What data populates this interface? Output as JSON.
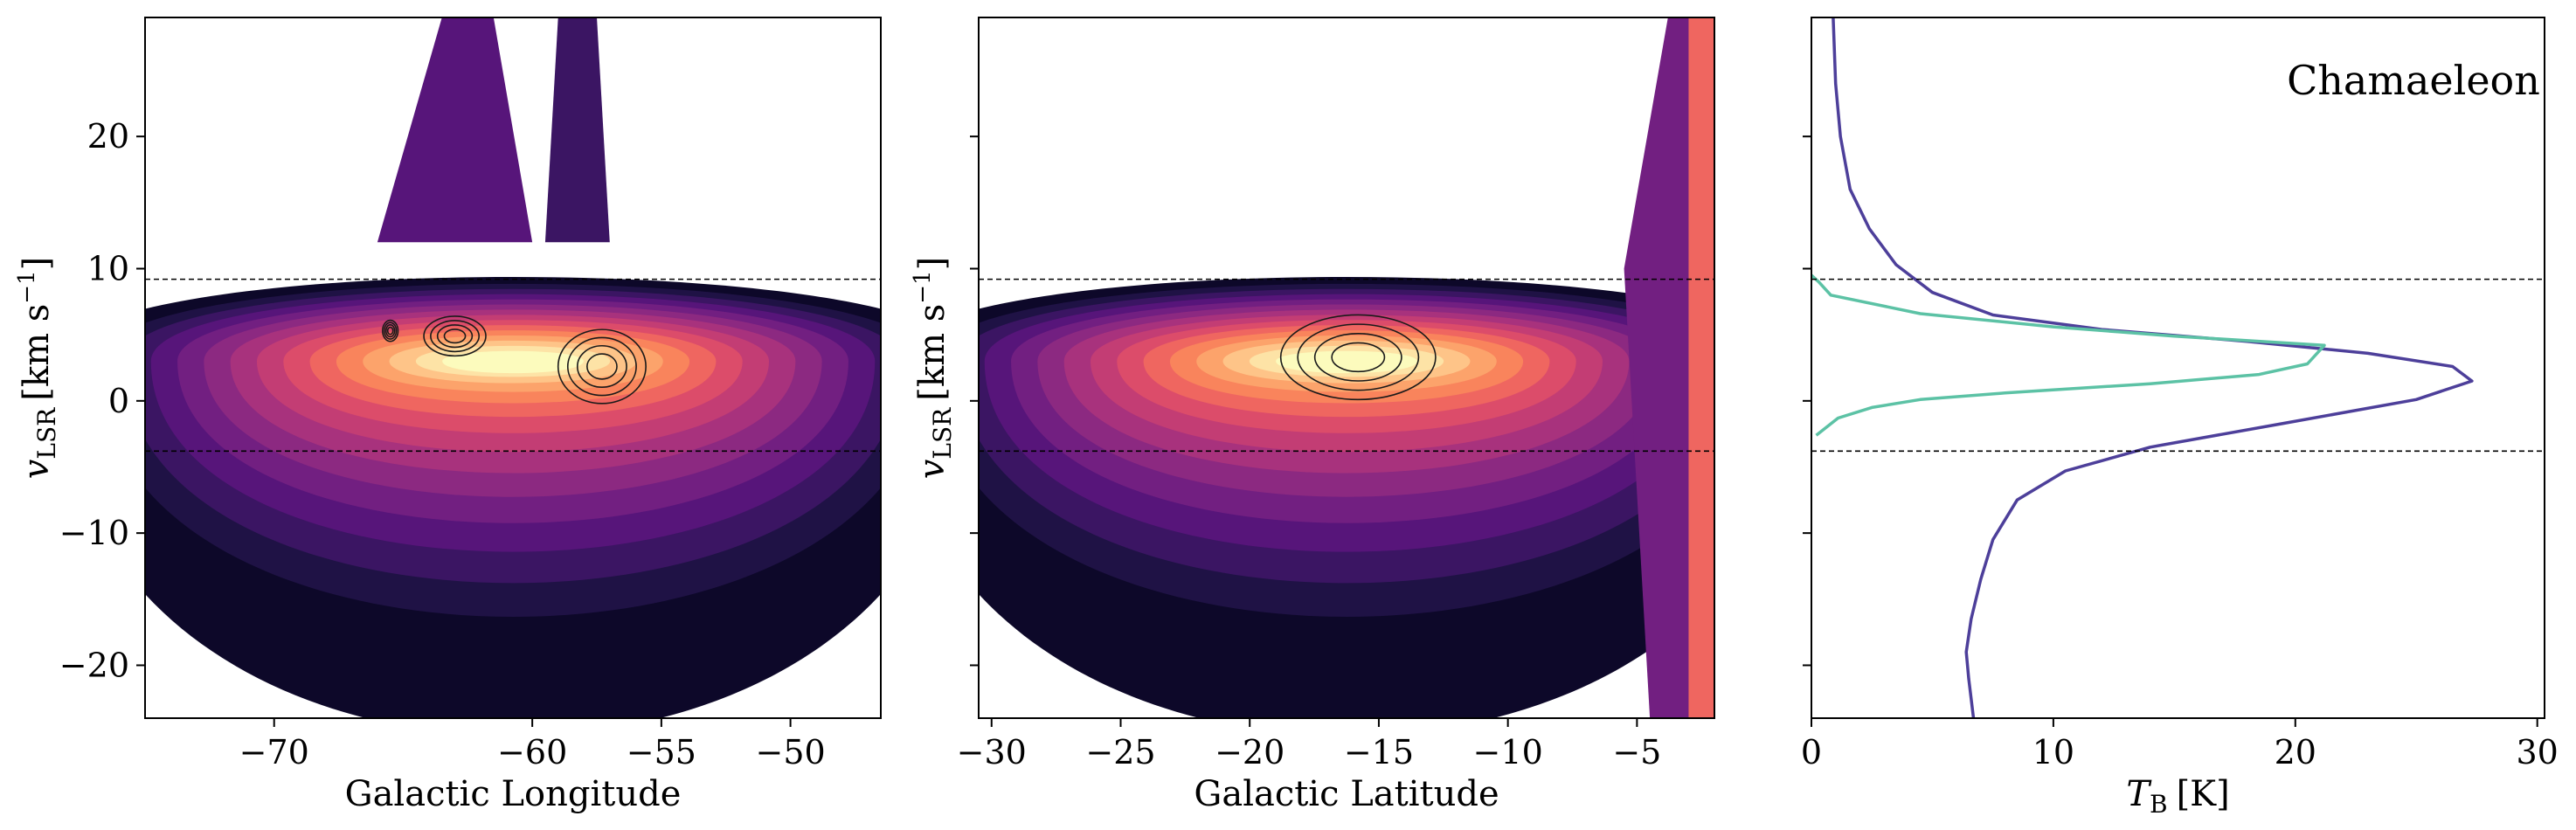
{
  "figure": {
    "annotation": "Chamaeleon",
    "ylabel": {
      "v": "v",
      "sub": "LSR",
      "units": "[km s",
      "sup": "−1",
      "close": "]"
    }
  },
  "colors": {
    "palette": [
      "#0d0829",
      "#1f1245",
      "#3b1563",
      "#57157a",
      "#721f81",
      "#8c2981",
      "#a8327d",
      "#c33d74",
      "#dc4c6a",
      "#ef6660",
      "#f9845c",
      "#fca36b",
      "#fec488",
      "#fde3a6",
      "#fcfbbd"
    ],
    "hi_line": "#4d3f9a",
    "co_line": "#5cc2a5"
  },
  "chart_data": [
    {
      "type": "heatmap",
      "xlabel": "Galactic Longitude",
      "xlim": [
        -75,
        -46.5
      ],
      "ylim": [
        -24,
        29
      ],
      "xticks": [
        -70,
        -60,
        -55,
        -50
      ],
      "xtick_labels": [
        "−70",
        "−60",
        "−55",
        "−50"
      ],
      "yticks": [
        20,
        10,
        0,
        -10,
        -20
      ],
      "ytick_labels": [
        "20",
        "10",
        "0",
        "−10",
        "−20"
      ],
      "hlines": [
        9.2,
        -3.8
      ],
      "peak_v": 3,
      "contours": [
        {
          "x": -63,
          "y": 4.9,
          "rx": 1.2,
          "ry": 1.5
        },
        {
          "x": -57.3,
          "y": 2.6,
          "rx": 1.7,
          "ry": 2.8
        },
        {
          "x": -65.5,
          "y": 5.3,
          "rx": 0.3,
          "ry": 0.8
        }
      ]
    },
    {
      "type": "heatmap",
      "xlabel": "Galactic Latitude",
      "xlim": [
        -30.5,
        -2
      ],
      "ylim": [
        -24,
        29
      ],
      "xticks": [
        -30,
        -25,
        -20,
        -15,
        -10,
        -5
      ],
      "xtick_labels": [
        "−30",
        "−25",
        "−20",
        "−15",
        "−10",
        "−5"
      ],
      "yticks": [
        20,
        10,
        0,
        -10,
        -20
      ],
      "hlines": [
        9.2,
        -3.8
      ],
      "peak_v": 3,
      "contours": [
        {
          "x": -15.8,
          "y": 3.3,
          "rx": 3.0,
          "ry": 3.2
        }
      ]
    },
    {
      "type": "line",
      "annotation": "Chamaeleon",
      "xlabel": "T",
      "xlabel_sub": "B",
      "xlabel_units": "[K]",
      "xlim": [
        0,
        30.3
      ],
      "ylim": [
        -24,
        29
      ],
      "xticks": [
        0,
        10,
        20,
        30
      ],
      "xtick_labels": [
        "0",
        "10",
        "20",
        "30"
      ],
      "yticks": [
        20,
        10,
        0,
        -10,
        -20
      ],
      "hlines": [
        9.2,
        -3.8
      ],
      "series": [
        {
          "color_key": "hi_line",
          "points": [
            [
              0.9,
              29
            ],
            [
              1.0,
              24
            ],
            [
              1.2,
              20
            ],
            [
              1.6,
              16
            ],
            [
              2.4,
              13
            ],
            [
              3.5,
              10.3
            ],
            [
              5.0,
              8.2
            ],
            [
              7.5,
              6.5
            ],
            [
              12,
              5.4
            ],
            [
              18,
              4.5
            ],
            [
              23,
              3.6
            ],
            [
              26.5,
              2.6
            ],
            [
              27.3,
              1.5
            ],
            [
              25,
              0.1
            ],
            [
              19.5,
              -1.7
            ],
            [
              14,
              -3.5
            ],
            [
              10.5,
              -5.3
            ],
            [
              8.5,
              -7.5
            ],
            [
              7.5,
              -10.5
            ],
            [
              7.0,
              -13.5
            ],
            [
              6.6,
              -16.5
            ],
            [
              6.4,
              -19
            ],
            [
              6.5,
              -21
            ],
            [
              6.7,
              -24
            ]
          ]
        },
        {
          "color_key": "co_line",
          "points": [
            [
              0,
              9.5
            ],
            [
              0.3,
              9.0
            ],
            [
              0.8,
              8.0
            ],
            [
              4.5,
              6.6
            ],
            [
              10,
              5.6
            ],
            [
              15,
              4.9
            ],
            [
              21.2,
              4.2
            ],
            [
              20.5,
              2.8
            ],
            [
              18.5,
              2.0
            ],
            [
              14,
              1.3
            ],
            [
              8,
              0.6
            ],
            [
              4.5,
              0.1
            ],
            [
              2.5,
              -0.5
            ],
            [
              1.1,
              -1.3
            ],
            [
              0.2,
              -2.6
            ]
          ]
        }
      ]
    }
  ]
}
